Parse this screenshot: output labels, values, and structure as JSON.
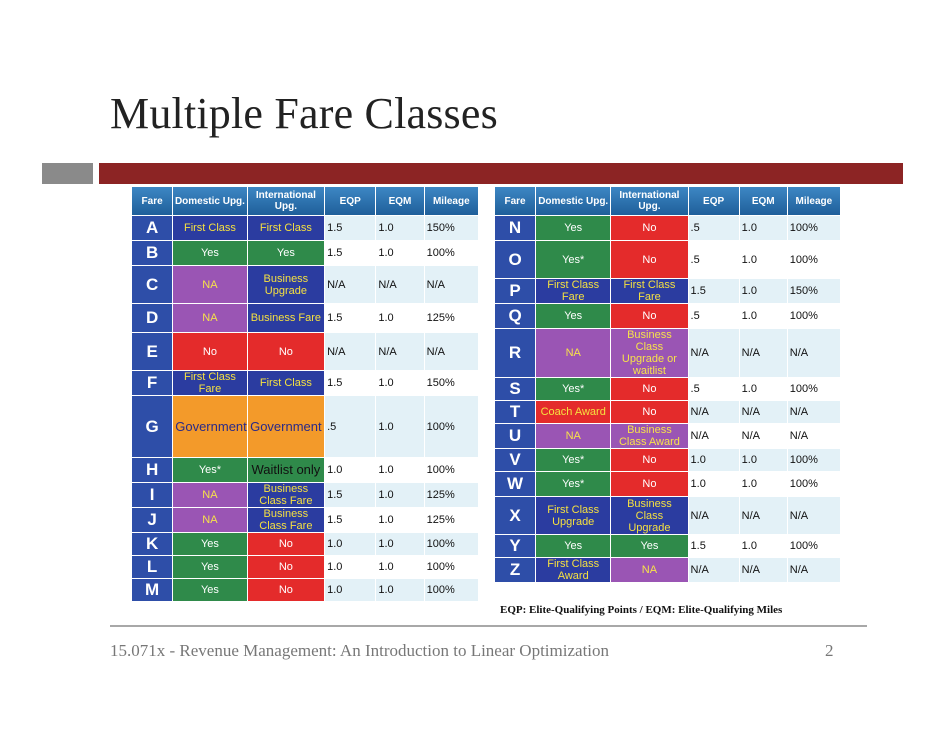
{
  "title": "Multiple Fare Classes",
  "colors": {
    "accent_bar": "#8c2424",
    "gray_bar": "#8a8a8a",
    "header": "#2a6eae"
  },
  "table_headers": [
    "Fare",
    "Domestic Upg.",
    "International Upg.",
    "EQP",
    "EQM",
    "Mileage"
  ],
  "left_rows": [
    {
      "fare": "A",
      "dom": "First Class",
      "domc": "blue yt",
      "intl": "First Class",
      "intlc": "blue yt",
      "eqp": "1.5",
      "eqm": "1.0",
      "mileage": "150%",
      "h": 24
    },
    {
      "fare": "B",
      "dom": "Yes",
      "domc": "green",
      "intl": "Yes",
      "intlc": "green",
      "eqp": "1.5",
      "eqm": "1.0",
      "mileage": "100%",
      "h": 24
    },
    {
      "fare": "C",
      "dom": "NA",
      "domc": "purple",
      "intl": "Business Upgrade",
      "intlc": "blue yt",
      "eqp": "N/A",
      "eqm": "N/A",
      "mileage": "N/A",
      "h": 37
    },
    {
      "fare": "D",
      "dom": "NA",
      "domc": "purple",
      "intl": "Business Fare",
      "intlc": "blue yt",
      "eqp": "1.5",
      "eqm": "1.0",
      "mileage": "125%",
      "h": 28
    },
    {
      "fare": "E",
      "dom": "No",
      "domc": "red",
      "intl": "No",
      "intlc": "red",
      "eqp": "N/A",
      "eqm": "N/A",
      "mileage": "N/A",
      "h": 37
    },
    {
      "fare": "F",
      "dom": "First Class Fare",
      "domc": "blue yt",
      "intl": "First Class",
      "intlc": "blue yt",
      "eqp": "1.5",
      "eqm": "1.0",
      "mileage": "150%",
      "h": 24
    },
    {
      "fare": "G",
      "dom": "Government",
      "domc": "orange",
      "intl": "Government",
      "intlc": "orange",
      "eqp": ".5",
      "eqm": "1.0",
      "mileage": "100%",
      "h": 61
    },
    {
      "fare": "H",
      "dom": "Yes*",
      "domc": "green",
      "intl": "Waitlist only",
      "intlc": "waitlist",
      "eqp": "1.0",
      "eqm": "1.0",
      "mileage": "100%",
      "h": 24
    },
    {
      "fare": "I",
      "dom": "NA",
      "domc": "purple",
      "intl": "Business Class Fare",
      "intlc": "blue yt",
      "eqp": "1.5",
      "eqm": "1.0",
      "mileage": "125%",
      "h": 24
    },
    {
      "fare": "J",
      "dom": "NA",
      "domc": "purple",
      "intl": "Business Class Fare",
      "intlc": "blue yt",
      "eqp": "1.5",
      "eqm": "1.0",
      "mileage": "125%",
      "h": 24
    },
    {
      "fare": "K",
      "dom": "Yes",
      "domc": "green",
      "intl": "No",
      "intlc": "red",
      "eqp": "1.0",
      "eqm": "1.0",
      "mileage": "100%",
      "h": 22
    },
    {
      "fare": "L",
      "dom": "Yes",
      "domc": "green",
      "intl": "No",
      "intlc": "red",
      "eqp": "1.0",
      "eqm": "1.0",
      "mileage": "100%",
      "h": 22
    },
    {
      "fare": "M",
      "dom": "Yes",
      "domc": "green",
      "intl": "No",
      "intlc": "red",
      "eqp": "1.0",
      "eqm": "1.0",
      "mileage": "100%",
      "h": 22
    }
  ],
  "right_rows": [
    {
      "fare": "N",
      "dom": "Yes",
      "domc": "green",
      "intl": "No",
      "intlc": "red",
      "eqp": ".5",
      "eqm": "1.0",
      "mileage": "100%",
      "h": 24
    },
    {
      "fare": "O",
      "dom": "Yes*",
      "domc": "green",
      "intl": "No",
      "intlc": "red",
      "eqp": ".5",
      "eqm": "1.0",
      "mileage": "100%",
      "h": 37
    },
    {
      "fare": "P",
      "dom": "First Class Fare",
      "domc": "blue yt",
      "intl": "First Class Fare",
      "intlc": "blue yt",
      "eqp": "1.5",
      "eqm": "1.0",
      "mileage": "150%",
      "h": 24
    },
    {
      "fare": "Q",
      "dom": "Yes",
      "domc": "green",
      "intl": "No",
      "intlc": "red",
      "eqp": ".5",
      "eqm": "1.0",
      "mileage": "100%",
      "h": 24
    },
    {
      "fare": "R",
      "dom": "NA",
      "domc": "purple",
      "intl": "Business Class Upgrade or waitlist",
      "intlc": "purple",
      "eqp": "N/A",
      "eqm": "N/A",
      "mileage": "N/A",
      "h": 47
    },
    {
      "fare": "S",
      "dom": "Yes*",
      "domc": "green",
      "intl": "No",
      "intlc": "red",
      "eqp": ".5",
      "eqm": "1.0",
      "mileage": "100%",
      "h": 22
    },
    {
      "fare": "T",
      "dom": "Coach Award",
      "domc": "red yt",
      "intl": "No",
      "intlc": "red",
      "eqp": "N/A",
      "eqm": "N/A",
      "mileage": "N/A",
      "h": 22
    },
    {
      "fare": "U",
      "dom": "NA",
      "domc": "purple",
      "intl": "Business Class Award",
      "intlc": "purple",
      "eqp": "N/A",
      "eqm": "N/A",
      "mileage": "N/A",
      "h": 24
    },
    {
      "fare": "V",
      "dom": "Yes*",
      "domc": "green",
      "intl": "No",
      "intlc": "red",
      "eqp": "1.0",
      "eqm": "1.0",
      "mileage": "100%",
      "h": 22
    },
    {
      "fare": "W",
      "dom": "Yes*",
      "domc": "green",
      "intl": "No",
      "intlc": "red",
      "eqp": "1.0",
      "eqm": "1.0",
      "mileage": "100%",
      "h": 24
    },
    {
      "fare": "X",
      "dom": "First Class Upgrade",
      "domc": "blue yt",
      "intl": "Business Class Upgrade",
      "intlc": "blue yt",
      "eqp": "N/A",
      "eqm": "N/A",
      "mileage": "N/A",
      "h": 37
    },
    {
      "fare": "Y",
      "dom": "Yes",
      "domc": "green",
      "intl": "Yes",
      "intlc": "green",
      "eqp": "1.5",
      "eqm": "1.0",
      "mileage": "100%",
      "h": 22
    },
    {
      "fare": "Z",
      "dom": "First Class Award",
      "domc": "blue yt",
      "intl": "NA",
      "intlc": "purple",
      "eqp": "N/A",
      "eqm": "N/A",
      "mileage": "N/A",
      "h": 23
    }
  ],
  "footnote": "EQP: Elite-Qualifying Points / EQM: Elite-Qualifying Miles",
  "footer": "15.071x - Revenue Management: An Introduction to Linear Optimization",
  "page_number": "2"
}
